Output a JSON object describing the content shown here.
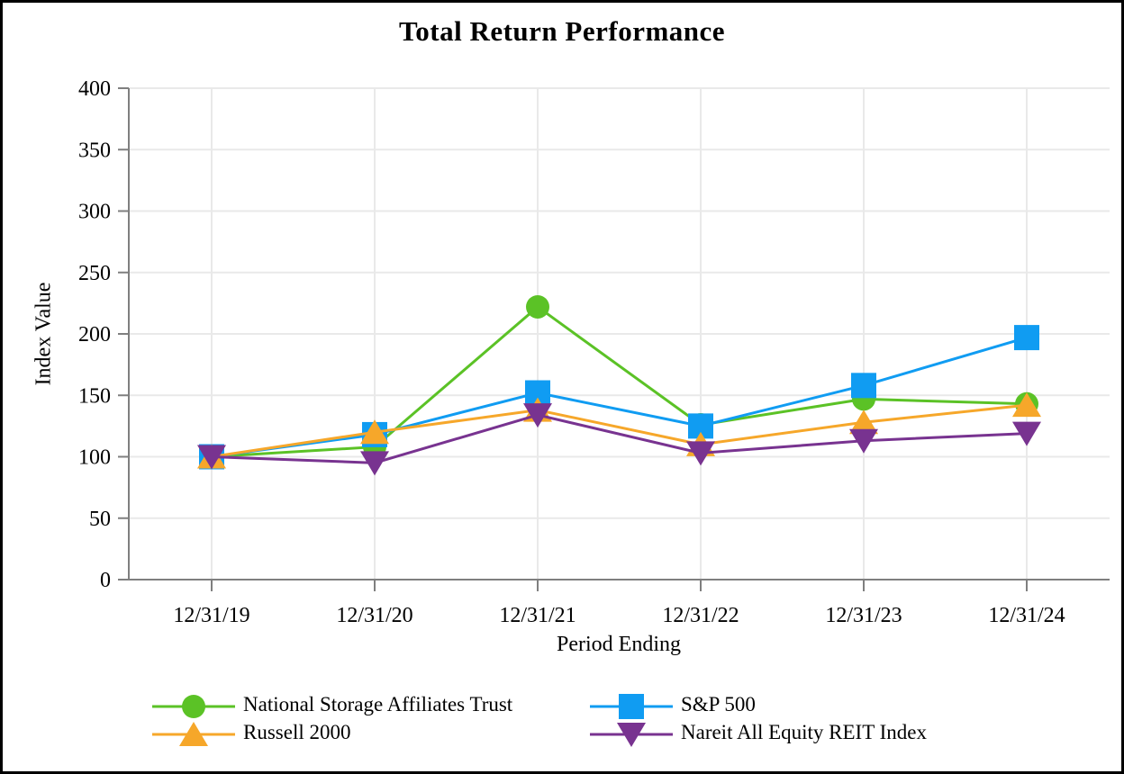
{
  "frame": {
    "background_color": "#ffffff",
    "border_color": "#000000"
  },
  "chart_data": {
    "type": "line",
    "title": "Total Return Performance",
    "xlabel": "Period Ending",
    "ylabel": "Index Value",
    "categories": [
      "12/31/19",
      "12/31/20",
      "12/31/21",
      "12/31/22",
      "12/31/23",
      "12/31/24"
    ],
    "ylim": [
      0,
      400
    ],
    "ytick_step": 50,
    "ytick_labels": [
      "0",
      "50",
      "100",
      "150",
      "200",
      "250",
      "300",
      "350",
      "400"
    ],
    "grid": true,
    "legend_position": "bottom",
    "axis_color": "#7f7f7f",
    "gridline_color": "#e9e9e9",
    "series": [
      {
        "name": "National Storage Affiliates Trust",
        "marker": "circle",
        "color": "#5bc226",
        "values": [
          100,
          108,
          222,
          126,
          147,
          143
        ]
      },
      {
        "name": "S&P 500",
        "marker": "square",
        "color": "#109cf2",
        "values": [
          100,
          118,
          152,
          125,
          158,
          197
        ]
      },
      {
        "name": "Russell 2000",
        "marker": "triangle-up",
        "color": "#f6a72a",
        "values": [
          100,
          120,
          138,
          110,
          128,
          142
        ]
      },
      {
        "name": "Nareit All Equity REIT Index",
        "marker": "triangle-down",
        "color": "#783390",
        "values": [
          100,
          95,
          134,
          103,
          113,
          119
        ]
      }
    ]
  }
}
